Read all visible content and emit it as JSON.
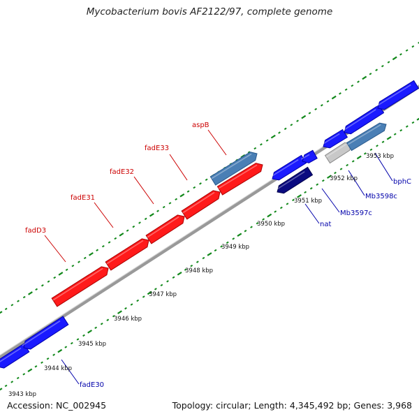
{
  "title": "Mycobacterium bovis AF2122/97, complete genome",
  "footer": {
    "accession": "Accession: NC_002945",
    "summary": "Topology: circular; Length: 4,345,492 bp; Genes: 3,968"
  },
  "colors": {
    "forward_gene": "#ff0000",
    "reverse_gene": "#0000ee",
    "backbone": "#999999",
    "dots": "#11881a",
    "label_forward": "#cc0000",
    "label_reverse": "#0000aa",
    "kbp_text": "#111111"
  },
  "genome_map": {
    "kbp_labels": [
      "3943 kbp",
      "3944 kbp",
      "3945 kbp",
      "3946 kbp",
      "3947 kbp",
      "3948 kbp",
      "3949 kbp",
      "3950 kbp",
      "3951 kbp",
      "3952 kbp",
      "3953 kbp"
    ],
    "forward_labels": [
      "fadD3",
      "fadE31",
      "fadE32",
      "fadE33",
      "aspB"
    ],
    "reverse_labels": [
      "fadE30",
      "nat",
      "Mb3597c",
      "Mb3598c",
      "bphC"
    ]
  }
}
